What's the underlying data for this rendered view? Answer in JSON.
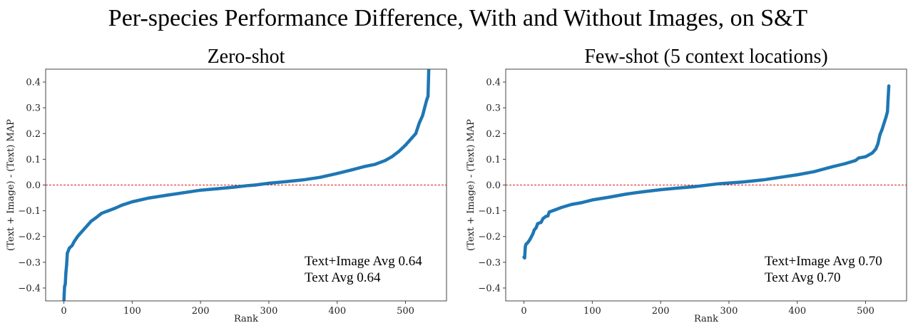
{
  "chart_data": {
    "title": "Per-species Performance Difference, With and Without Images, on S&T",
    "colors": {
      "series": "#1f77b4",
      "zero_line": "#e02020"
    },
    "panels": [
      {
        "type": "line",
        "title": "Zero-shot",
        "xlabel": "Rank",
        "ylabel": "(Text + Image) - (Text) MAP",
        "xlim": [
          -26.7,
          560
        ],
        "ylim": [
          -0.45,
          0.45
        ],
        "xticks": [
          0,
          100,
          200,
          300,
          400,
          500
        ],
        "yticks": [
          -0.4,
          -0.3,
          -0.2,
          -0.1,
          0.0,
          0.1,
          0.2,
          0.3,
          0.4
        ],
        "ytick_labels": [
          "−0.4",
          "−0.3",
          "−0.2",
          "−0.1",
          "0.0",
          "0.1",
          "0.2",
          "0.3",
          "0.4"
        ],
        "reference_line": 0.0,
        "annotations": [
          "Text+Image Avg 0.64",
          "Text Avg 0.64"
        ],
        "points": [
          [
            0,
            -0.45
          ],
          [
            1,
            -0.395
          ],
          [
            2,
            -0.385
          ],
          [
            3,
            -0.34
          ],
          [
            4,
            -0.31
          ],
          [
            5,
            -0.265
          ],
          [
            8,
            -0.245
          ],
          [
            12,
            -0.235
          ],
          [
            15,
            -0.22
          ],
          [
            20,
            -0.2
          ],
          [
            25,
            -0.185
          ],
          [
            30,
            -0.17
          ],
          [
            35,
            -0.155
          ],
          [
            40,
            -0.14
          ],
          [
            47,
            -0.127
          ],
          [
            55,
            -0.11
          ],
          [
            65,
            -0.1
          ],
          [
            75,
            -0.09
          ],
          [
            85,
            -0.078
          ],
          [
            100,
            -0.065
          ],
          [
            125,
            -0.05
          ],
          [
            150,
            -0.04
          ],
          [
            175,
            -0.03
          ],
          [
            200,
            -0.02
          ],
          [
            225,
            -0.014
          ],
          [
            250,
            -0.008
          ],
          [
            270,
            -0.002
          ],
          [
            280,
            0.0
          ],
          [
            300,
            0.007
          ],
          [
            325,
            0.013
          ],
          [
            350,
            0.02
          ],
          [
            375,
            0.03
          ],
          [
            400,
            0.045
          ],
          [
            420,
            0.058
          ],
          [
            440,
            0.072
          ],
          [
            455,
            0.08
          ],
          [
            470,
            0.095
          ],
          [
            480,
            0.11
          ],
          [
            490,
            0.13
          ],
          [
            500,
            0.155
          ],
          [
            510,
            0.185
          ],
          [
            515,
            0.2
          ],
          [
            520,
            0.24
          ],
          [
            525,
            0.27
          ],
          [
            528,
            0.3
          ],
          [
            531,
            0.33
          ],
          [
            533,
            0.345
          ],
          [
            534,
            0.45
          ]
        ]
      },
      {
        "type": "line",
        "title": "Few-shot (5 context locations)",
        "xlabel": "Rank",
        "ylabel": "(Text + Image) - (Text) MAP",
        "xlim": [
          -26.7,
          560
        ],
        "ylim": [
          -0.45,
          0.45
        ],
        "xticks": [
          0,
          100,
          200,
          300,
          400,
          500
        ],
        "yticks": [
          -0.4,
          -0.3,
          -0.2,
          -0.1,
          0.0,
          0.1,
          0.2,
          0.3,
          0.4
        ],
        "ytick_labels": [
          "−0.4",
          "−0.3",
          "−0.2",
          "−0.1",
          "0.0",
          "0.1",
          "0.2",
          "0.3",
          "0.4"
        ],
        "reference_line": 0.0,
        "annotations": [
          "Text+Image Avg 0.70",
          "Text Avg 0.70"
        ],
        "points": [
          [
            0,
            -0.28
          ],
          [
            1,
            -0.283
          ],
          [
            2,
            -0.24
          ],
          [
            3,
            -0.23
          ],
          [
            5,
            -0.225
          ],
          [
            8,
            -0.215
          ],
          [
            10,
            -0.205
          ],
          [
            13,
            -0.19
          ],
          [
            15,
            -0.175
          ],
          [
            18,
            -0.165
          ],
          [
            20,
            -0.15
          ],
          [
            25,
            -0.145
          ],
          [
            28,
            -0.13
          ],
          [
            32,
            -0.122
          ],
          [
            35,
            -0.12
          ],
          [
            37,
            -0.105
          ],
          [
            45,
            -0.097
          ],
          [
            55,
            -0.087
          ],
          [
            70,
            -0.075
          ],
          [
            85,
            -0.068
          ],
          [
            100,
            -0.058
          ],
          [
            125,
            -0.047
          ],
          [
            150,
            -0.035
          ],
          [
            175,
            -0.026
          ],
          [
            200,
            -0.018
          ],
          [
            225,
            -0.012
          ],
          [
            250,
            -0.006
          ],
          [
            285,
            0.005
          ],
          [
            320,
            0.012
          ],
          [
            350,
            0.02
          ],
          [
            375,
            0.03
          ],
          [
            400,
            0.04
          ],
          [
            425,
            0.052
          ],
          [
            450,
            0.07
          ],
          [
            470,
            0.083
          ],
          [
            485,
            0.095
          ],
          [
            490,
            0.105
          ],
          [
            500,
            0.11
          ],
          [
            510,
            0.125
          ],
          [
            515,
            0.14
          ],
          [
            518,
            0.16
          ],
          [
            521,
            0.195
          ],
          [
            524,
            0.215
          ],
          [
            527,
            0.24
          ],
          [
            530,
            0.265
          ],
          [
            532,
            0.285
          ],
          [
            533,
            0.335
          ],
          [
            534,
            0.385
          ]
        ]
      }
    ]
  }
}
